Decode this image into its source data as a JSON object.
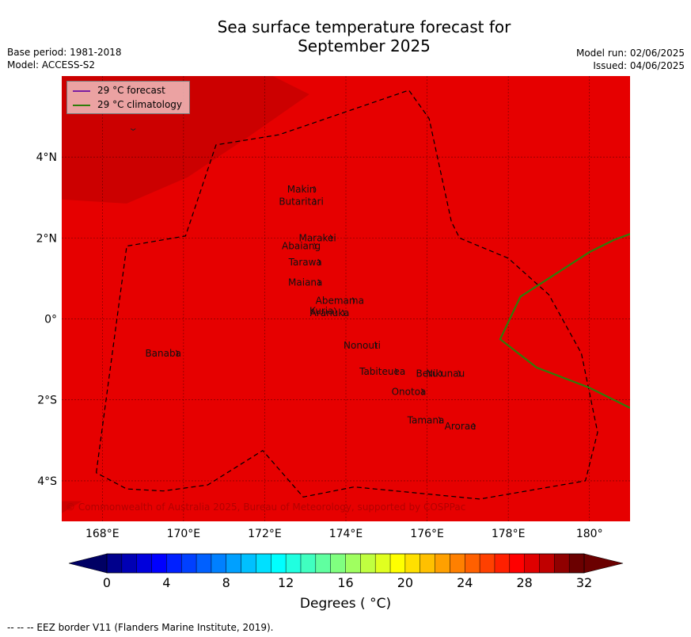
{
  "title": {
    "line1": "Sea surface temperature forecast for",
    "line2": "September 2025"
  },
  "meta": {
    "base_period": "Base period: 1981-2018",
    "model": "Model: ACCESS-S2",
    "model_run": "Model run: 02/06/2025",
    "issued": "Issued: 04/06/2025"
  },
  "legend": {
    "forecast": {
      "label": "29 °C  forecast",
      "color": "#7b1fa2"
    },
    "climatology": {
      "label": "29 °C  climatology",
      "color": "#2e7d0a"
    }
  },
  "colors": {
    "main_fill": "#e60000",
    "warm_fill": "#cc0000",
    "warmest_fill": "#990000"
  },
  "map": {
    "lon_range": [
      167,
      181
    ],
    "lat_range": [
      -5,
      6
    ],
    "lon_ticks": [
      {
        "value": 168,
        "label": "168°E"
      },
      {
        "value": 170,
        "label": "170°E"
      },
      {
        "value": 172,
        "label": "172°E"
      },
      {
        "value": 174,
        "label": "174°E"
      },
      {
        "value": 176,
        "label": "176°E"
      },
      {
        "value": 178,
        "label": "178°E"
      },
      {
        "value": 180,
        "label": "180°"
      }
    ],
    "lat_ticks": [
      {
        "value": 4,
        "label": "4°N"
      },
      {
        "value": 2,
        "label": "2°N"
      },
      {
        "value": 0,
        "label": "0°"
      },
      {
        "value": -2,
        "label": "2°S"
      },
      {
        "value": -4,
        "label": "4°S"
      }
    ],
    "islands": [
      {
        "name": "Makin",
        "lon": 172.9,
        "lat": 3.2
      },
      {
        "name": "Butaritari",
        "lon": 172.9,
        "lat": 2.9
      },
      {
        "name": "Marakei",
        "lon": 173.3,
        "lat": 2.0
      },
      {
        "name": "Abaiang",
        "lon": 172.9,
        "lat": 1.8
      },
      {
        "name": "Tarawa",
        "lon": 173.0,
        "lat": 1.4
      },
      {
        "name": "Maiana",
        "lon": 173.0,
        "lat": 0.9
      },
      {
        "name": "Abemama",
        "lon": 173.85,
        "lat": 0.45
      },
      {
        "name": "Kuria",
        "lon": 173.4,
        "lat": 0.2
      },
      {
        "name": "Aranuka",
        "lon": 173.6,
        "lat": 0.15
      },
      {
        "name": "Banaba",
        "lon": 169.5,
        "lat": -0.85
      },
      {
        "name": "Nonouti",
        "lon": 174.4,
        "lat": -0.65
      },
      {
        "name": "Tabiteuea",
        "lon": 174.9,
        "lat": -1.3
      },
      {
        "name": "Beru",
        "lon": 176.0,
        "lat": -1.35
      },
      {
        "name": "Nikunau",
        "lon": 176.45,
        "lat": -1.35
      },
      {
        "name": "Onotoa",
        "lon": 175.55,
        "lat": -1.8
      },
      {
        "name": "Tamana",
        "lon": 175.97,
        "lat": -2.5
      },
      {
        "name": "Arorae",
        "lon": 176.82,
        "lat": -2.65
      }
    ],
    "copyright": "© Commonwealth of Australia 2025, Bureau of Meteorology, supported by COSPPac"
  },
  "colorbar": {
    "tick_labels": [
      "0",
      "4",
      "8",
      "12",
      "16",
      "20",
      "24",
      "28",
      "32"
    ],
    "label": "Degrees ( °C)",
    "colors": [
      "#00008c",
      "#0000b4",
      "#0000dc",
      "#0000ff",
      "#0020ff",
      "#0040ff",
      "#0060ff",
      "#0080ff",
      "#00a0ff",
      "#00c0ff",
      "#00e0ff",
      "#00ffff",
      "#20ffe0",
      "#40ffc0",
      "#60ffa0",
      "#80ff80",
      "#a0ff60",
      "#c0ff40",
      "#e0ff20",
      "#ffff00",
      "#ffe000",
      "#ffc000",
      "#ffa000",
      "#ff8000",
      "#ff6000",
      "#ff4000",
      "#ff2000",
      "#ff0000",
      "#e00000",
      "#c00000",
      "#900000",
      "#6b0000"
    ],
    "under_color": "#000064",
    "over_color": "#6b0000"
  },
  "footnote": "--  --  -- EEZ border V11 (Flanders Marine Institute, 2019)."
}
